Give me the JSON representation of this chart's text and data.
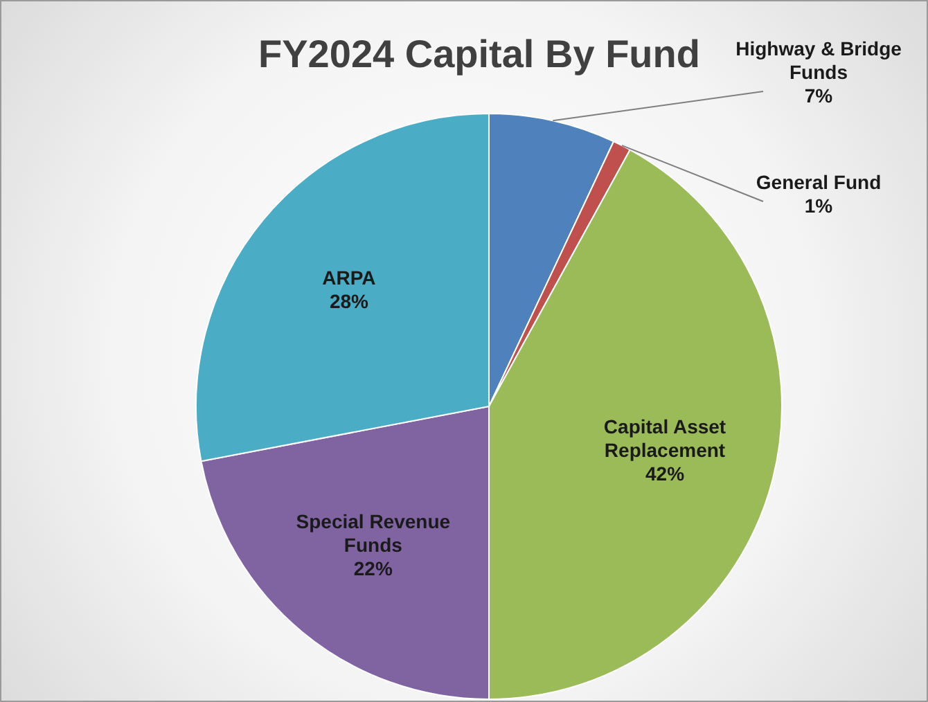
{
  "chart_data": {
    "type": "pie",
    "title": "FY2024 Capital By Fund",
    "categories": [
      "Highway & Bridge Funds",
      "General Fund",
      "Capital Asset Replacement",
      "Special Revenue Funds",
      "ARPA"
    ],
    "values": [
      7,
      1,
      42,
      22,
      28
    ],
    "colors": [
      "#4f81bd",
      "#c0504d",
      "#9bbb59",
      "#8064a2",
      "#4bacc6"
    ],
    "value_labels": [
      "7%",
      "1%",
      "42%",
      "22%",
      "28%"
    ],
    "legend": false
  }
}
